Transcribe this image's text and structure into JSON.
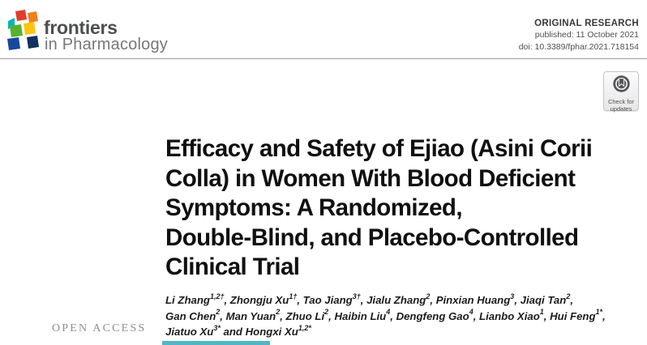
{
  "journal": {
    "brand": "frontiers",
    "subtitle": "in Pharmacology"
  },
  "header_meta": {
    "article_type": "ORIGINAL RESEARCH",
    "published": "published: 11 October 2021",
    "doi": "doi: 10.3389/fphar.2021.718154"
  },
  "crossmark": {
    "label_line1": "Check for",
    "label_line2": "updates"
  },
  "article": {
    "title_lines": [
      "Efficacy and Safety of Ejiao (Asini Corii",
      "Colla) in Women With Blood Deficient",
      "Symptoms: A Randomized,",
      "Double-Blind, and Placebo-Controlled",
      "Clinical Trial"
    ],
    "author_lines": [
      "Li Zhang^{1,2†}, Zhongju Xu^{1†}, Tao Jiang^{3†}, Jialu Zhang^{2}, Pinxian Huang^{3}, Jiaqi Tan^{2},",
      "Gan Chen^{2}, Man Yuan^{2}, Zhuo Li^{2}, Haibin Liu^{4}, Dengfeng Gao^{4}, Lianbo Xiao^{1}, Hui Feng^{1*},",
      "Jiatuo Xu^{3*} and Hongxi Xu^{1,2*}"
    ]
  },
  "sidebar": {
    "open_access": "OPEN ACCESS"
  },
  "colors": {
    "logo_red": "#e23a2c",
    "logo_orange": "#f08019",
    "logo_teal": "#00b5bd",
    "logo_green": "#56b12f",
    "logo_yellow": "#ffc40c",
    "logo_blue": "#14489c",
    "logo_navy": "#0f3060",
    "rule_gray": "#9b9b9b",
    "accent_teal_bar": "#4fb7c6"
  }
}
